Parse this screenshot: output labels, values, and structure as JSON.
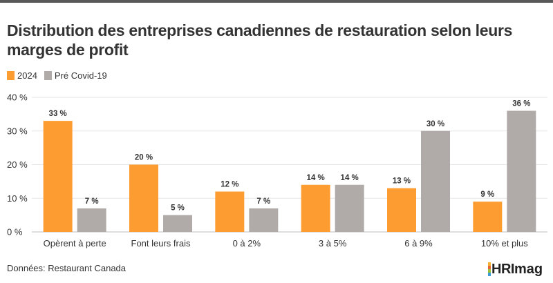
{
  "title": "Distribution des entreprises canadiennes de restauration selon leurs marges de profit",
  "source": "Données: Restaurant Canada",
  "logo": {
    "part1": "HRI",
    "part2": "mag"
  },
  "colors": {
    "series_2024": "#fd9d31",
    "series_precovid": "#b0aba8",
    "grid": "#e6e6e6",
    "text": "#333333"
  },
  "chart_data": {
    "type": "bar",
    "categories": [
      "Opèrent à perte",
      "Font leurs frais",
      "0 à 2%",
      "3 à 5%",
      "6 à 9%",
      "10% et plus"
    ],
    "series": [
      {
        "name": "2024",
        "values": [
          33,
          20,
          12,
          14,
          13,
          9
        ],
        "labels": [
          "33 %",
          "20 %",
          "12 %",
          "14 %",
          "13 %",
          "9 %"
        ]
      },
      {
        "name": "Pré Covid-19",
        "values": [
          7,
          5,
          7,
          14,
          30,
          36
        ],
        "labels": [
          "7 %",
          "5 %",
          "7 %",
          "14 %",
          "30 %",
          "36 %"
        ]
      }
    ],
    "ylim": [
      0,
      40
    ],
    "yticks": [
      0,
      10,
      20,
      30,
      40
    ],
    "ytick_labels": [
      "0 %",
      "10 %",
      "20 %",
      "30 %",
      "40 %"
    ],
    "grid": true,
    "legend_position": "top-left",
    "xlabel": "",
    "ylabel": ""
  }
}
